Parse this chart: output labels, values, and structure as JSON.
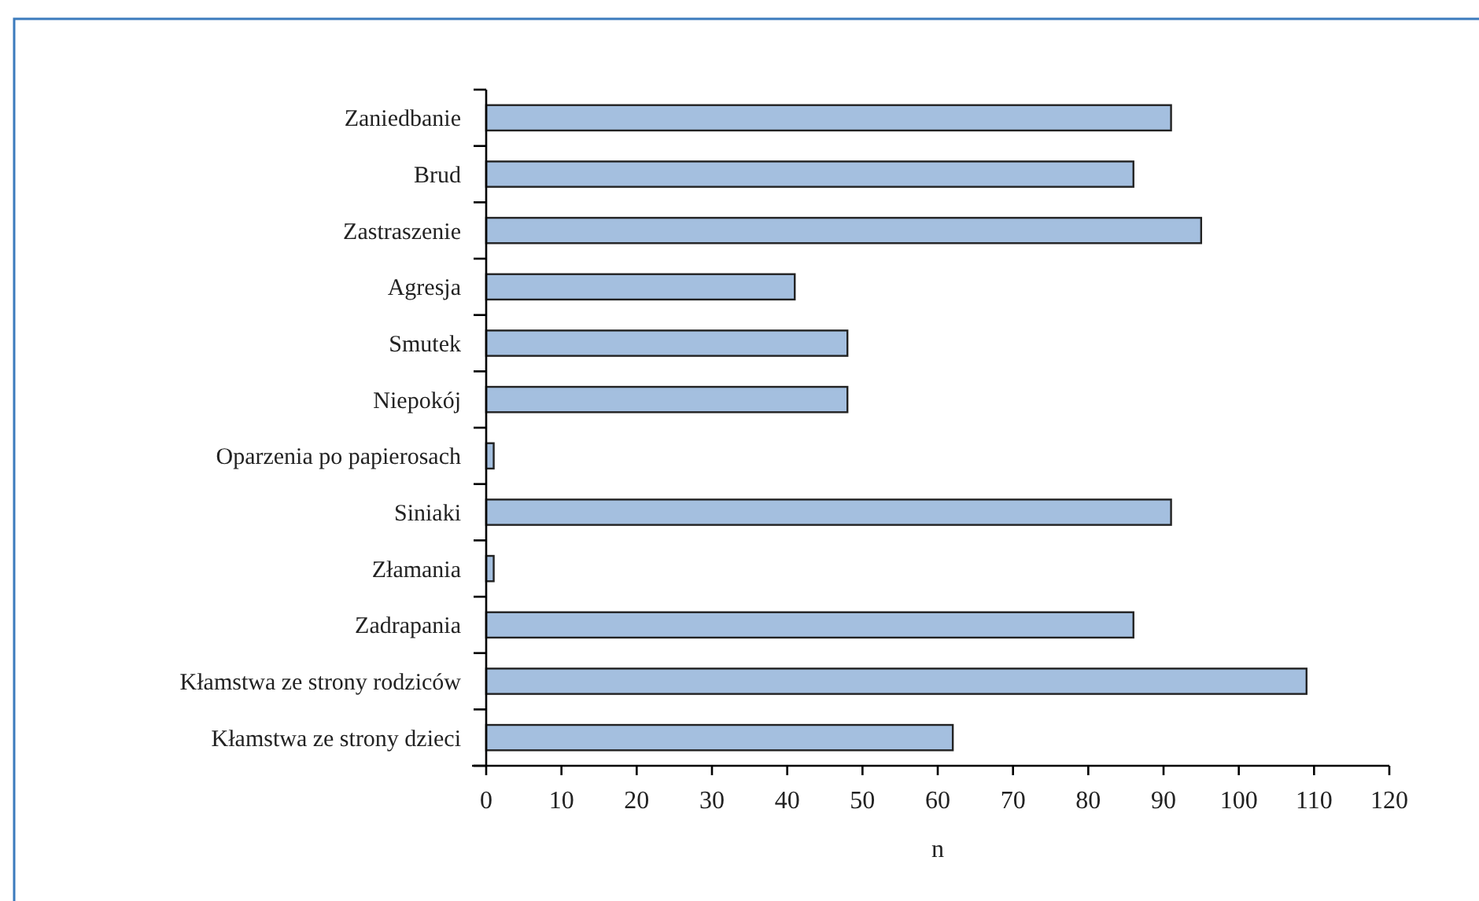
{
  "chart_data": {
    "type": "bar",
    "orientation": "horizontal",
    "xlabel": "n",
    "categories": [
      "Zaniedbanie",
      "Brud",
      "Zastraszenie",
      "Agresja",
      "Smutek",
      "Niepokój",
      "Oparzenia po papierosach",
      "Siniaki",
      "Złamania",
      "Zadrapania",
      "Kłamstwa ze strony rodziców",
      "Kłamstwa ze strony dzieci"
    ],
    "values": [
      91,
      86,
      95,
      41,
      48,
      48,
      1,
      91,
      1,
      86,
      109,
      62
    ],
    "color": "#a4bfdf",
    "xlim": [
      0,
      120
    ],
    "xticks": [
      0,
      10,
      20,
      30,
      40,
      50,
      60,
      70,
      80,
      90,
      100,
      110,
      120
    ],
    "grid": false
  }
}
